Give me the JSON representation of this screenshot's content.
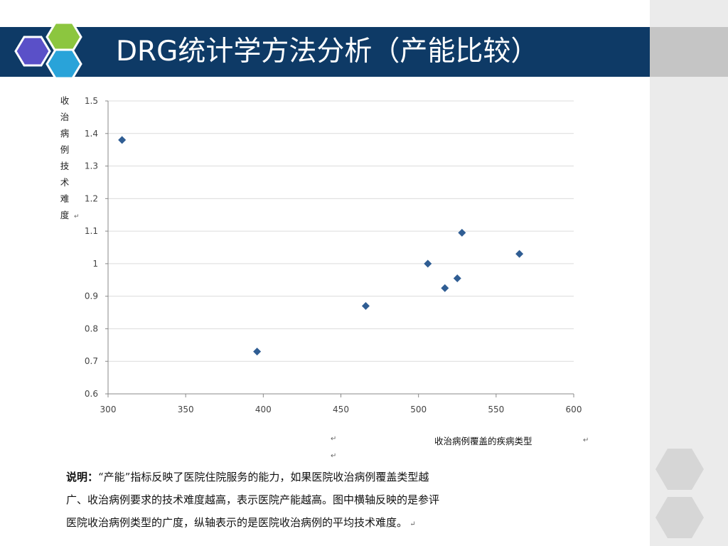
{
  "slide": {
    "title": "DRG统计学方法分析（产能比较）",
    "colors": {
      "title_bar": "#0e3a66",
      "hex_purple": "#5a50c8",
      "hex_green": "#8cc63f",
      "hex_blue": "#29a3d9",
      "marker": "#2f5d93"
    }
  },
  "chart_data": {
    "type": "scatter",
    "title": "",
    "xlabel": "收治病例覆盖的疾病类型",
    "ylabel": "收治病例技术难度",
    "xlim": [
      300,
      600
    ],
    "ylim": [
      0.6,
      1.5
    ],
    "x_ticks": [
      "300",
      "350",
      "400",
      "450",
      "500",
      "550",
      "600"
    ],
    "y_ticks": [
      "0.6",
      "0.7",
      "0.8",
      "0.9",
      "1",
      "1.1",
      "1.2",
      "1.3",
      "1.4",
      "1.5"
    ],
    "grid": true,
    "points": [
      {
        "x": 309,
        "y": 1.38
      },
      {
        "x": 396,
        "y": 0.73
      },
      {
        "x": 466,
        "y": 0.87
      },
      {
        "x": 506,
        "y": 1.0
      },
      {
        "x": 517,
        "y": 0.925
      },
      {
        "x": 525,
        "y": 0.955
      },
      {
        "x": 528,
        "y": 1.095
      },
      {
        "x": 565,
        "y": 1.03
      }
    ]
  },
  "description": {
    "label": "说明：",
    "line1": "“产能”指标反映了医院住院服务的能力，如果医院收治病例覆盖类型越",
    "line2": "广、收治病例要求的技术难度越高，表示医院产能越高。图中横轴反映的是参评",
    "line3": "医院收治病例类型的广度，纵轴表示的是医院收治病例的平均技术难度。"
  }
}
